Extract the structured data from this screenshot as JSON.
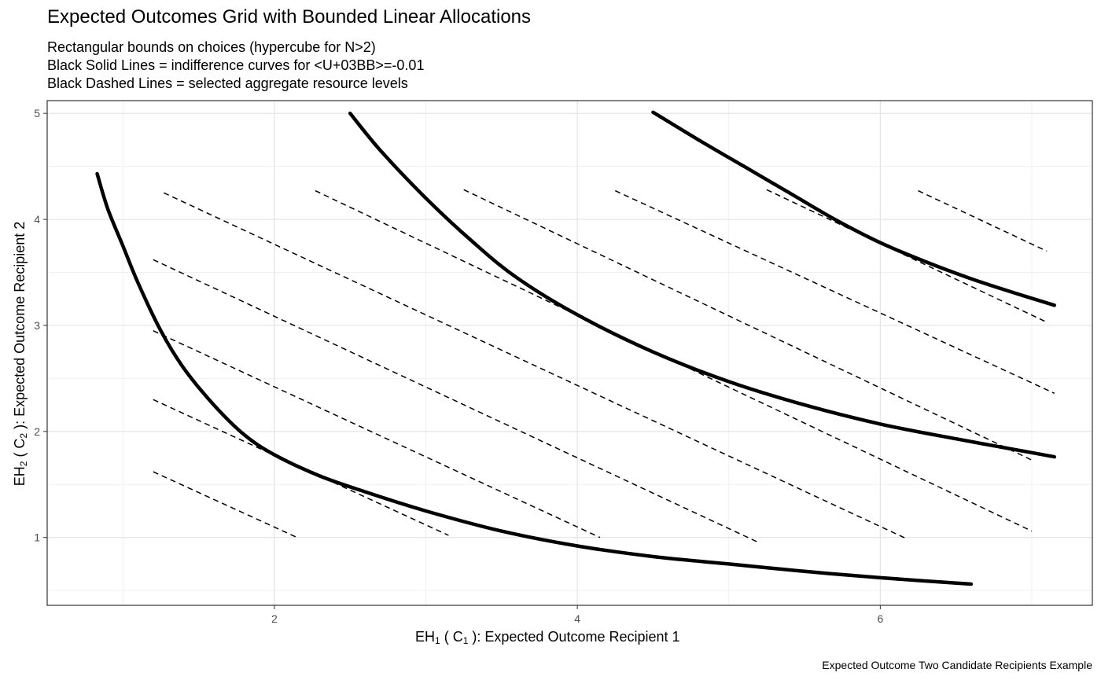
{
  "chart_data": {
    "type": "line",
    "title": "Expected Outcomes Grid with Bounded Linear Allocations",
    "subtitle": [
      "Rectangular bounds on choices (hypercube for N>2)",
      "Black Solid Lines = indifference curves for <U+03BB>=-0.01",
      "Black Dashed Lines = selected aggregate resource levels"
    ],
    "xlabel": {
      "main": "EH",
      "sub1": "1",
      "mid": " ( C",
      "sub2": "1",
      "rest": " ):  Expected Outcome Recipient 1"
    },
    "ylabel": {
      "main": "EH",
      "sub1": "2",
      "mid": " ( C",
      "sub2": "2",
      "rest": " ):  Expected Outcome Recipient 2"
    },
    "caption": "Expected Outcome Two Candidate Recipients Example",
    "xlim": [
      0.5,
      7.4
    ],
    "ylim": [
      0.36,
      5.12
    ],
    "x_ticks": [
      2,
      4,
      6
    ],
    "y_ticks": [
      1,
      2,
      3,
      4,
      5
    ],
    "grid": true,
    "solid_series": [
      {
        "x": [
          0.83,
          0.9,
          1.0,
          1.1,
          1.25,
          1.4,
          1.6,
          1.8,
          2.0,
          2.3,
          2.6,
          3.0,
          3.5,
          4.0,
          4.5,
          5.0,
          5.5,
          6.0,
          6.6
        ],
        "y": [
          4.43,
          4.1,
          3.75,
          3.4,
          2.95,
          2.6,
          2.25,
          1.97,
          1.78,
          1.58,
          1.43,
          1.25,
          1.06,
          0.92,
          0.82,
          0.75,
          0.68,
          0.62,
          0.56
        ]
      },
      {
        "x": [
          2.5,
          2.7,
          3.0,
          3.3,
          3.6,
          4.0,
          4.5,
          5.0,
          5.5,
          6.0,
          6.5,
          7.0,
          7.15
        ],
        "y": [
          5.0,
          4.65,
          4.2,
          3.8,
          3.45,
          3.1,
          2.75,
          2.47,
          2.25,
          2.07,
          1.93,
          1.8,
          1.76
        ]
      },
      {
        "x": [
          4.5,
          4.8,
          5.1,
          5.4,
          5.7,
          6.0,
          6.3,
          6.6,
          6.9,
          7.15
        ],
        "y": [
          5.01,
          4.75,
          4.5,
          4.25,
          4.0,
          3.78,
          3.6,
          3.44,
          3.3,
          3.19
        ]
      }
    ],
    "dashed_series": [
      {
        "x": [
          1.2,
          2.15
        ],
        "y": [
          1.62,
          1.0
        ]
      },
      {
        "x": [
          1.2,
          3.15
        ],
        "y": [
          2.3,
          1.02
        ]
      },
      {
        "x": [
          1.2,
          4.15
        ],
        "y": [
          2.95,
          1.0
        ]
      },
      {
        "x": [
          1.2,
          5.2
        ],
        "y": [
          3.62,
          0.95
        ]
      },
      {
        "x": [
          1.27,
          6.17
        ],
        "y": [
          4.25,
          0.99
        ]
      },
      {
        "x": [
          2.27,
          7.0
        ],
        "y": [
          4.27,
          1.06
        ]
      },
      {
        "x": [
          3.25,
          7.0
        ],
        "y": [
          4.28,
          1.73
        ]
      },
      {
        "x": [
          4.25,
          7.15
        ],
        "y": [
          4.27,
          2.36
        ]
      },
      {
        "x": [
          5.25,
          7.1
        ],
        "y": [
          4.28,
          3.03
        ]
      },
      {
        "x": [
          6.25,
          7.1
        ],
        "y": [
          4.27,
          3.7
        ]
      }
    ]
  }
}
